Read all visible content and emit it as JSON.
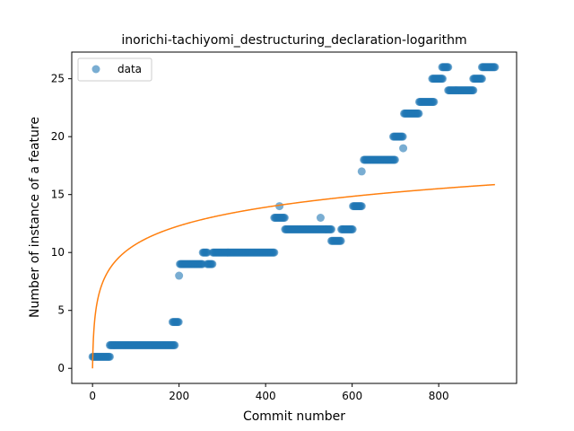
{
  "chart_data": {
    "type": "scatter",
    "title": "inorichi-tachiyomi_destructuring_declaration-logarithm",
    "xlabel": "Commit number",
    "ylabel": "Number of instance of a feature",
    "xlim": [
      -48,
      980
    ],
    "ylim": [
      -1.3,
      27.3
    ],
    "xticks": [
      0,
      200,
      400,
      600,
      800
    ],
    "yticks": [
      0,
      5,
      10,
      15,
      20,
      25
    ],
    "grid": false,
    "legend": {
      "placement": "top-left",
      "entries": [
        "data"
      ]
    },
    "colors": {
      "data": "#1f77b4",
      "fit": "#ff7f0e"
    },
    "series": [
      {
        "name": "data",
        "kind": "scatter",
        "segments": [
          {
            "x_start": 0,
            "x_end": 40,
            "y": 1
          },
          {
            "x_start": 40,
            "x_end": 190,
            "y": 2
          },
          {
            "x_start": 185,
            "x_end": 200,
            "y": 4
          },
          {
            "x_start": 200,
            "x_end": 200,
            "y": 8
          },
          {
            "x_start": 202,
            "x_end": 255,
            "y": 9
          },
          {
            "x_start": 255,
            "x_end": 265,
            "y": 10
          },
          {
            "x_start": 265,
            "x_end": 278,
            "y": 9
          },
          {
            "x_start": 278,
            "x_end": 420,
            "y": 10
          },
          {
            "x_start": 420,
            "x_end": 445,
            "y": 13
          },
          {
            "x_start": 432,
            "x_end": 432,
            "y": 14
          },
          {
            "x_start": 445,
            "x_end": 540,
            "y": 12
          },
          {
            "x_start": 527,
            "x_end": 527,
            "y": 13
          },
          {
            "x_start": 540,
            "x_end": 552,
            "y": 12
          },
          {
            "x_start": 552,
            "x_end": 575,
            "y": 11
          },
          {
            "x_start": 575,
            "x_end": 602,
            "y": 12
          },
          {
            "x_start": 602,
            "x_end": 622,
            "y": 14
          },
          {
            "x_start": 622,
            "x_end": 622,
            "y": 17
          },
          {
            "x_start": 627,
            "x_end": 700,
            "y": 18
          },
          {
            "x_start": 695,
            "x_end": 718,
            "y": 20
          },
          {
            "x_start": 718,
            "x_end": 718,
            "y": 19
          },
          {
            "x_start": 720,
            "x_end": 755,
            "y": 22
          },
          {
            "x_start": 755,
            "x_end": 790,
            "y": 23
          },
          {
            "x_start": 785,
            "x_end": 810,
            "y": 25
          },
          {
            "x_start": 808,
            "x_end": 822,
            "y": 26
          },
          {
            "x_start": 822,
            "x_end": 880,
            "y": 24
          },
          {
            "x_start": 880,
            "x_end": 900,
            "y": 25
          },
          {
            "x_start": 900,
            "x_end": 930,
            "y": 26
          }
        ]
      },
      {
        "kind": "line",
        "function": "logarithmic",
        "a": 2.32,
        "b": 0,
        "x_range": [
          0,
          930
        ]
      }
    ]
  }
}
